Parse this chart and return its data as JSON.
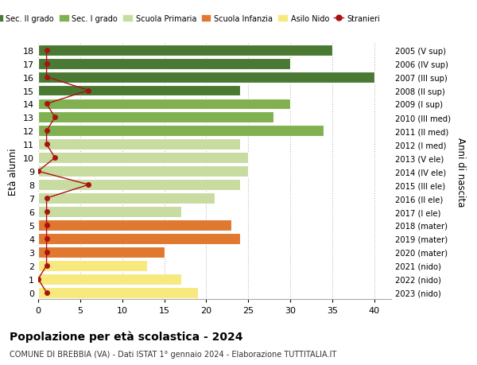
{
  "ages": [
    0,
    1,
    2,
    3,
    4,
    5,
    6,
    7,
    8,
    9,
    10,
    11,
    12,
    13,
    14,
    15,
    16,
    17,
    18
  ],
  "years_labels": [
    "2023 (nido)",
    "2022 (nido)",
    "2021 (nido)",
    "2020 (mater)",
    "2019 (mater)",
    "2018 (mater)",
    "2017 (I ele)",
    "2016 (II ele)",
    "2015 (III ele)",
    "2014 (IV ele)",
    "2013 (V ele)",
    "2012 (I med)",
    "2011 (II med)",
    "2010 (III med)",
    "2009 (I sup)",
    "2008 (II sup)",
    "2007 (III sup)",
    "2006 (IV sup)",
    "2005 (V sup)"
  ],
  "bar_values": [
    19,
    17,
    13,
    15,
    24,
    23,
    17,
    21,
    24,
    25,
    25,
    24,
    34,
    28,
    30,
    24,
    40,
    30,
    35
  ],
  "bar_colors": [
    "#f7e97e",
    "#f7e97e",
    "#f7e97e",
    "#e07830",
    "#e07830",
    "#e07830",
    "#c8dba0",
    "#c8dba0",
    "#c8dba0",
    "#c8dba0",
    "#c8dba0",
    "#c8dba0",
    "#80b050",
    "#80b050",
    "#80b050",
    "#4a7a32",
    "#4a7a32",
    "#4a7a32",
    "#4a7a32"
  ],
  "stranieri_values": [
    1,
    0,
    1,
    1,
    1,
    1,
    1,
    1,
    6,
    0,
    2,
    1,
    1,
    2,
    1,
    6,
    1,
    1,
    1
  ],
  "title": "Popolazione per età scolastica - 2024",
  "subtitle": "COMUNE DI BREBBIA (VA) - Dati ISTAT 1° gennaio 2024 - Elaborazione TUTTITALIA.IT",
  "ylabel": "Età alunni",
  "right_ylabel": "Anni di nascita",
  "xlim": [
    0,
    42
  ],
  "xticks": [
    0,
    5,
    10,
    15,
    20,
    25,
    30,
    35,
    40
  ],
  "legend_labels": [
    "Sec. II grado",
    "Sec. I grado",
    "Scuola Primaria",
    "Scuola Infanzia",
    "Asilo Nido",
    "Stranieri"
  ],
  "legend_colors": [
    "#4a7a32",
    "#80b050",
    "#c8dba0",
    "#e07830",
    "#f7e97e",
    "#aa1111"
  ],
  "color_stranieri": "#aa1111",
  "bg_color": "#ffffff",
  "grid_color": "#bbbbbb"
}
